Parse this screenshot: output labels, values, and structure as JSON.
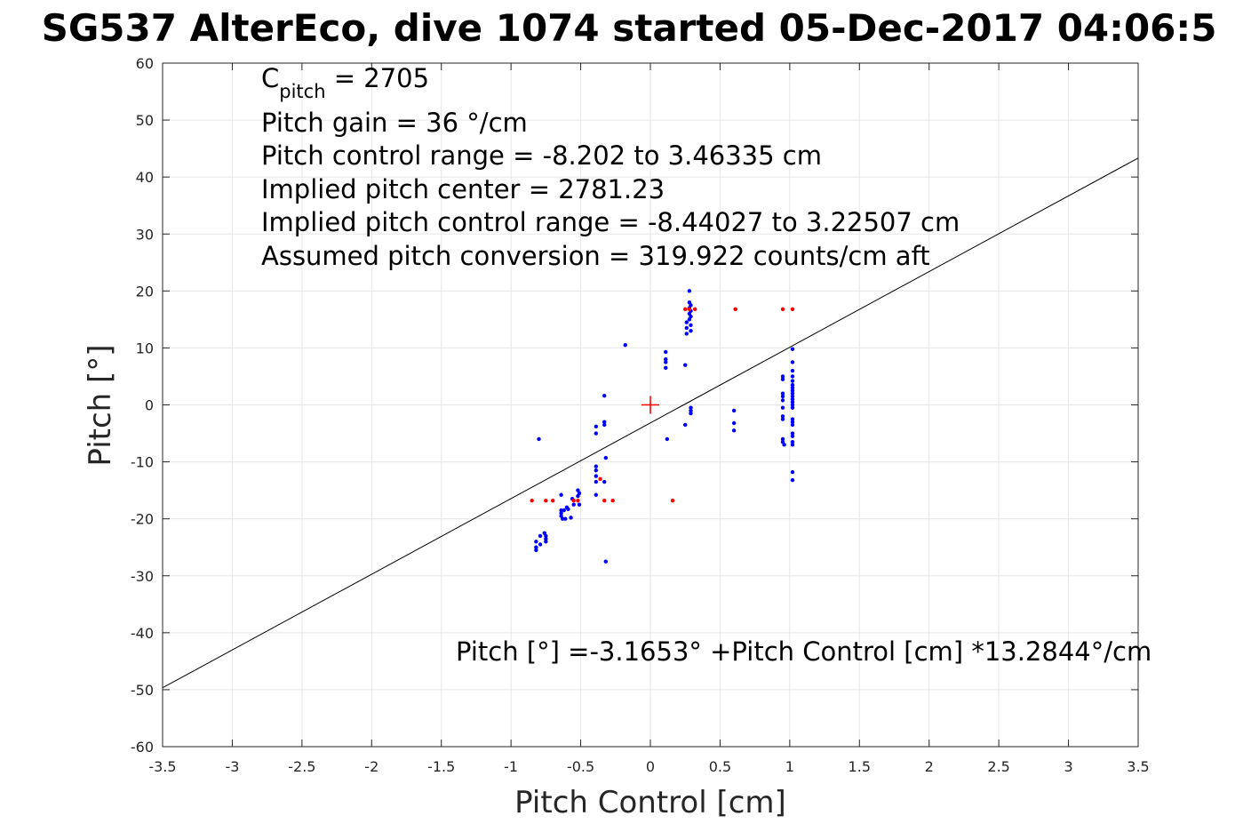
{
  "chart_data": {
    "type": "scatter",
    "title": "SG537 AlterEco, dive 1074 started 05-Dec-2017 04:06:5",
    "xlabel": "Pitch Control [cm]",
    "ylabel": "Pitch [°]",
    "xlim": [
      -3.5,
      3.5
    ],
    "ylim": [
      -60,
      60
    ],
    "grid": true,
    "x_ticks": [
      "-3.5",
      "-3",
      "-2.5",
      "-2",
      "-1.5",
      "-1",
      "-0.5",
      "0",
      "0.5",
      "1",
      "1.5",
      "2",
      "2.5",
      "3",
      "3.5"
    ],
    "x_tick_values": [
      -3.5,
      -3,
      -2.5,
      -2,
      -1.5,
      -1,
      -0.5,
      0,
      0.5,
      1,
      1.5,
      2,
      2.5,
      3,
      3.5
    ],
    "y_ticks": [
      "60",
      "50",
      "40",
      "30",
      "20",
      "10",
      "0",
      "-10",
      "-20",
      "-30",
      "-40",
      "-50",
      "-60"
    ],
    "y_tick_values": [
      60,
      50,
      40,
      30,
      20,
      10,
      0,
      -10,
      -20,
      -30,
      -40,
      -50,
      -60
    ],
    "annotations": {
      "c_pitch_main": "C",
      "c_pitch_sub": "pitch",
      "c_pitch_value": " = 2705",
      "lines": [
        "Pitch gain = 36 °/cm",
        "Pitch control range = -8.202 to 3.46335 cm",
        "Implied pitch center = 2781.23",
        "Implied pitch control range = -8.44027 to 3.22507 cm",
        "Assumed pitch conversion = 319.922 counts/cm aft"
      ],
      "fit_equation": "Pitch [°] =-3.1653° +Pitch Control [cm] *13.2844°/cm"
    },
    "fit_line": {
      "intercept": -3.1653,
      "slope": 13.2844,
      "color": "#000000"
    },
    "center_marker": {
      "x": 0,
      "y": 0,
      "color": "#ff0000"
    },
    "series": [
      {
        "color": "#0000ff",
        "points": [
          [
            -0.8,
            -6
          ],
          [
            -0.82,
            -24
          ],
          [
            -0.82,
            -25
          ],
          [
            -0.82,
            -25.5
          ],
          [
            -0.79,
            -23
          ],
          [
            -0.79,
            -24.5
          ],
          [
            -0.76,
            -22.5
          ],
          [
            -0.75,
            -23
          ],
          [
            -0.75,
            -23.5
          ],
          [
            -0.75,
            -24
          ],
          [
            -0.64,
            -15.8
          ],
          [
            -0.64,
            -18.5
          ],
          [
            -0.64,
            -19
          ],
          [
            -0.64,
            -19.5
          ],
          [
            -0.63,
            -20
          ],
          [
            -0.62,
            -18.5
          ],
          [
            -0.61,
            -20
          ],
          [
            -0.6,
            -18
          ],
          [
            -0.59,
            -18.3
          ],
          [
            -0.57,
            -19.8
          ],
          [
            -0.56,
            -16.5
          ],
          [
            -0.55,
            -17.5
          ],
          [
            -0.52,
            -15
          ],
          [
            -0.52,
            -16
          ],
          [
            -0.51,
            -15.5
          ],
          [
            -0.51,
            -17.5
          ],
          [
            -0.39,
            -3.8
          ],
          [
            -0.39,
            -5
          ],
          [
            -0.39,
            -10.8
          ],
          [
            -0.39,
            -11.5
          ],
          [
            -0.39,
            -12.5
          ],
          [
            -0.39,
            -13.5
          ],
          [
            -0.39,
            -15.8
          ],
          [
            -0.33,
            1.6
          ],
          [
            -0.33,
            -3
          ],
          [
            -0.33,
            -3.5
          ],
          [
            -0.32,
            -9.3
          ],
          [
            -0.33,
            -13.5
          ],
          [
            -0.32,
            -27.5
          ],
          [
            -0.18,
            10.5
          ],
          [
            0.11,
            9.3
          ],
          [
            0.11,
            8
          ],
          [
            0.11,
            7.5
          ],
          [
            0.11,
            6.5
          ],
          [
            0.12,
            -6
          ],
          [
            0.25,
            7
          ],
          [
            0.25,
            -3.5
          ],
          [
            0.26,
            12.5
          ],
          [
            0.26,
            13.5
          ],
          [
            0.26,
            14.5
          ],
          [
            0.28,
            15
          ],
          [
            0.28,
            16
          ],
          [
            0.28,
            17
          ],
          [
            0.28,
            18
          ],
          [
            0.28,
            20
          ],
          [
            0.29,
            13
          ],
          [
            0.29,
            14
          ],
          [
            0.29,
            15.5
          ],
          [
            0.29,
            16.5
          ],
          [
            0.29,
            17.5
          ],
          [
            0.29,
            -0.5
          ],
          [
            0.29,
            -1
          ],
          [
            0.29,
            -1.5
          ],
          [
            0.6,
            -1
          ],
          [
            0.6,
            -3.2
          ],
          [
            0.6,
            -4.5
          ],
          [
            0.95,
            5
          ],
          [
            0.95,
            4.5
          ],
          [
            0.95,
            2
          ],
          [
            0.95,
            1.5
          ],
          [
            0.95,
            0.8
          ],
          [
            0.95,
            -0.5
          ],
          [
            0.95,
            -2
          ],
          [
            0.95,
            -2.5
          ],
          [
            0.95,
            -6
          ],
          [
            0.95,
            -6.5
          ],
          [
            0.96,
            -7
          ],
          [
            1.02,
            9.8
          ],
          [
            1.02,
            7.5
          ],
          [
            1.02,
            6
          ],
          [
            1.02,
            5
          ],
          [
            1.02,
            4.2
          ],
          [
            1.02,
            3.5
          ],
          [
            1.02,
            3
          ],
          [
            1.02,
            2.5
          ],
          [
            1.02,
            2
          ],
          [
            1.02,
            1.5
          ],
          [
            1.02,
            1
          ],
          [
            1.02,
            0.5
          ],
          [
            1.02,
            0
          ],
          [
            1.02,
            -0.5
          ],
          [
            1.02,
            -2.5
          ],
          [
            1.02,
            -3
          ],
          [
            1.02,
            -3.5
          ],
          [
            1.02,
            -5
          ],
          [
            1.02,
            -5.5
          ],
          [
            1.02,
            -6.5
          ],
          [
            1.02,
            -7
          ],
          [
            1.02,
            -11.8
          ],
          [
            1.02,
            -13.2
          ]
        ]
      },
      {
        "color": "#ff0000",
        "points": [
          [
            -0.85,
            -16.8
          ],
          [
            -0.75,
            -16.8
          ],
          [
            -0.7,
            -16.8
          ],
          [
            -0.55,
            -16.8
          ],
          [
            -0.52,
            -16.8
          ],
          [
            -0.36,
            -13
          ],
          [
            -0.33,
            -16.8
          ],
          [
            -0.27,
            -16.8
          ],
          [
            0.16,
            -16.8
          ],
          [
            0.25,
            16.8
          ],
          [
            0.28,
            16.8
          ],
          [
            0.32,
            16.8
          ],
          [
            0.61,
            16.8
          ],
          [
            0.95,
            16.8
          ],
          [
            1.02,
            16.8
          ]
        ]
      }
    ]
  }
}
